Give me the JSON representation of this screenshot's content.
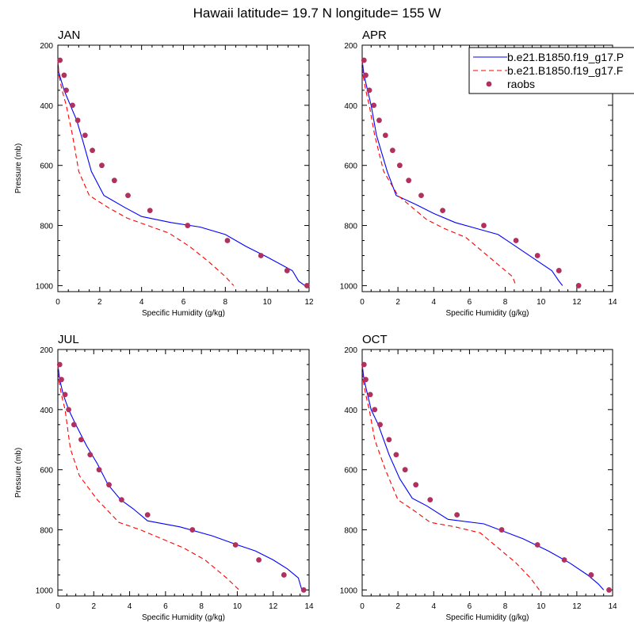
{
  "title": "Hawaii  latitude= 19.7 N longitude= 155 W",
  "colors": {
    "model_a": "#0000ff",
    "model_b": "#ff0000",
    "raobs": "#b03060"
  },
  "legend": {
    "placement": "top-right of APR panel",
    "entries": [
      "b.e21.B1850.f19_g17.P",
      "b.e21.B1850.f19_g17.F",
      "raobs"
    ]
  },
  "chart_data": [
    {
      "type": "line",
      "title": "JAN",
      "xlabel": "Specific Humidity (g/kg)",
      "ylabel": "Pressure (mb)",
      "xlim": [
        0,
        12
      ],
      "ylim": [
        200,
        1020
      ],
      "y_inverted": true,
      "xticks": [
        0,
        2,
        4,
        6,
        8,
        10,
        12
      ],
      "yticks": [
        200,
        400,
        600,
        800,
        1000
      ],
      "series": [
        {
          "name": "b.e21.B1850.f19_g17.P",
          "style": "solid",
          "points": [
            [
              0.0,
              250
            ],
            [
              0.04,
              290
            ],
            [
              0.3,
              350
            ],
            [
              0.6,
              400
            ],
            [
              0.9,
              450
            ],
            [
              1.2,
              520
            ],
            [
              1.6,
              620
            ],
            [
              2.2,
              700
            ],
            [
              3.2,
              740
            ],
            [
              4.0,
              770
            ],
            [
              5.4,
              790
            ],
            [
              6.8,
              805
            ],
            [
              8.0,
              830
            ],
            [
              9.0,
              870
            ],
            [
              10.0,
              905
            ],
            [
              11.2,
              950
            ],
            [
              11.5,
              985
            ],
            [
              11.8,
              1000
            ]
          ]
        },
        {
          "name": "b.e21.B1850.f19_g17.F",
          "style": "dashed",
          "points": [
            [
              0.0,
              250
            ],
            [
              0.05,
              300
            ],
            [
              0.2,
              350
            ],
            [
              0.4,
              400
            ],
            [
              0.7,
              500
            ],
            [
              1.0,
              620
            ],
            [
              1.5,
              700
            ],
            [
              2.4,
              740
            ],
            [
              3.3,
              775
            ],
            [
              4.3,
              800
            ],
            [
              5.3,
              825
            ],
            [
              6.3,
              870
            ],
            [
              7.2,
              920
            ],
            [
              8.0,
              970
            ],
            [
              8.4,
              1000
            ]
          ]
        },
        {
          "name": "raobs",
          "style": "markers",
          "points": [
            [
              0.1,
              250
            ],
            [
              0.3,
              300
            ],
            [
              0.4,
              350
            ],
            [
              0.7,
              400
            ],
            [
              0.95,
              450
            ],
            [
              1.3,
              500
            ],
            [
              1.65,
              550
            ],
            [
              2.1,
              600
            ],
            [
              2.7,
              650
            ],
            [
              3.35,
              700
            ],
            [
              4.4,
              750
            ],
            [
              6.2,
              800
            ],
            [
              8.1,
              850
            ],
            [
              9.7,
              900
            ],
            [
              10.95,
              950
            ],
            [
              11.9,
              1000
            ]
          ]
        }
      ]
    },
    {
      "type": "line",
      "title": "APR",
      "xlabel": "Specific Humidity (g/kg)",
      "ylabel": "",
      "xlim": [
        0,
        14
      ],
      "ylim": [
        200,
        1020
      ],
      "y_inverted": true,
      "xticks": [
        0,
        2,
        4,
        6,
        8,
        10,
        12,
        14
      ],
      "yticks": [
        200,
        400,
        600,
        800,
        1000
      ],
      "series": [
        {
          "name": "b.e21.B1850.f19_g17.P",
          "style": "solid",
          "points": [
            [
              0.0,
              250
            ],
            [
              0.1,
              300
            ],
            [
              0.3,
              350
            ],
            [
              0.5,
              400
            ],
            [
              0.8,
              500
            ],
            [
              1.4,
              620
            ],
            [
              1.9,
              700
            ],
            [
              3.0,
              730
            ],
            [
              4.0,
              760
            ],
            [
              5.2,
              790
            ],
            [
              6.4,
              810
            ],
            [
              7.6,
              830
            ],
            [
              8.6,
              870
            ],
            [
              9.6,
              910
            ],
            [
              10.6,
              950
            ],
            [
              11.0,
              985
            ],
            [
              11.2,
              1000
            ]
          ]
        },
        {
          "name": "b.e21.B1850.f19_g17.F",
          "style": "dashed",
          "points": [
            [
              0.0,
              250
            ],
            [
              0.05,
              300
            ],
            [
              0.2,
              350
            ],
            [
              0.4,
              400
            ],
            [
              0.7,
              500
            ],
            [
              1.2,
              620
            ],
            [
              2.0,
              700
            ],
            [
              2.8,
              740
            ],
            [
              3.6,
              780
            ],
            [
              4.6,
              810
            ],
            [
              5.8,
              840
            ],
            [
              6.8,
              890
            ],
            [
              7.8,
              940
            ],
            [
              8.4,
              970
            ],
            [
              8.6,
              1000
            ]
          ]
        },
        {
          "name": "raobs",
          "style": "markers",
          "points": [
            [
              0.1,
              250
            ],
            [
              0.2,
              300
            ],
            [
              0.4,
              350
            ],
            [
              0.65,
              400
            ],
            [
              0.95,
              450
            ],
            [
              1.3,
              500
            ],
            [
              1.7,
              550
            ],
            [
              2.1,
              600
            ],
            [
              2.6,
              650
            ],
            [
              3.3,
              700
            ],
            [
              4.5,
              750
            ],
            [
              6.8,
              800
            ],
            [
              8.6,
              850
            ],
            [
              9.8,
              900
            ],
            [
              11.0,
              950
            ],
            [
              12.1,
              1000
            ]
          ]
        }
      ]
    },
    {
      "type": "line",
      "title": "JUL",
      "xlabel": "Specific Humidity (g/kg)",
      "ylabel": "Pressure (mb)",
      "xlim": [
        0,
        14
      ],
      "ylim": [
        200,
        1020
      ],
      "y_inverted": true,
      "xticks": [
        0,
        2,
        4,
        6,
        8,
        10,
        12,
        14
      ],
      "yticks": [
        200,
        400,
        600,
        800,
        1000
      ],
      "series": [
        {
          "name": "b.e21.B1850.f19_g17.P",
          "style": "solid",
          "points": [
            [
              0.0,
              250
            ],
            [
              0.1,
              300
            ],
            [
              0.3,
              350
            ],
            [
              0.6,
              400
            ],
            [
              1.0,
              450
            ],
            [
              1.6,
              520
            ],
            [
              2.2,
              580
            ],
            [
              2.8,
              650
            ],
            [
              3.5,
              700
            ],
            [
              4.2,
              730
            ],
            [
              5.0,
              770
            ],
            [
              6.8,
              790
            ],
            [
              8.6,
              820
            ],
            [
              10.0,
              850
            ],
            [
              11.0,
              870
            ],
            [
              12.0,
              900
            ],
            [
              12.8,
              930
            ],
            [
              13.4,
              960
            ],
            [
              13.6,
              1000
            ]
          ]
        },
        {
          "name": "b.e21.B1850.f19_g17.F",
          "style": "dashed",
          "points": [
            [
              0.0,
              250
            ],
            [
              0.05,
              300
            ],
            [
              0.2,
              350
            ],
            [
              0.4,
              400
            ],
            [
              0.7,
              530
            ],
            [
              1.2,
              620
            ],
            [
              2.2,
              700
            ],
            [
              3.4,
              775
            ],
            [
              4.6,
              800
            ],
            [
              5.8,
              830
            ],
            [
              7.0,
              860
            ],
            [
              8.2,
              900
            ],
            [
              9.4,
              960
            ],
            [
              10.1,
              1000
            ]
          ]
        },
        {
          "name": "raobs",
          "style": "markers",
          "points": [
            [
              0.1,
              250
            ],
            [
              0.2,
              300
            ],
            [
              0.4,
              350
            ],
            [
              0.6,
              400
            ],
            [
              0.9,
              450
            ],
            [
              1.3,
              500
            ],
            [
              1.8,
              550
            ],
            [
              2.3,
              600
            ],
            [
              2.85,
              650
            ],
            [
              3.55,
              700
            ],
            [
              5.0,
              750
            ],
            [
              7.5,
              800
            ],
            [
              9.9,
              850
            ],
            [
              11.2,
              900
            ],
            [
              12.6,
              950
            ],
            [
              13.7,
              1000
            ]
          ]
        }
      ]
    },
    {
      "type": "line",
      "title": "OCT",
      "xlabel": "Specific Humidity (g/kg)",
      "ylabel": "",
      "xlim": [
        0,
        14
      ],
      "ylim": [
        200,
        1020
      ],
      "y_inverted": true,
      "xticks": [
        0,
        2,
        4,
        6,
        8,
        10,
        12,
        14
      ],
      "yticks": [
        200,
        400,
        600,
        800,
        1000
      ],
      "series": [
        {
          "name": "b.e21.B1850.f19_g17.P",
          "style": "solid",
          "points": [
            [
              0.0,
              250
            ],
            [
              0.1,
              300
            ],
            [
              0.3,
              350
            ],
            [
              0.5,
              400
            ],
            [
              0.9,
              450
            ],
            [
              1.5,
              550
            ],
            [
              2.1,
              630
            ],
            [
              2.8,
              695
            ],
            [
              3.6,
              720
            ],
            [
              4.8,
              765
            ],
            [
              6.8,
              780
            ],
            [
              9.0,
              830
            ],
            [
              10.4,
              870
            ],
            [
              11.6,
              910
            ],
            [
              12.6,
              950
            ],
            [
              13.2,
              980
            ],
            [
              13.5,
              1000
            ]
          ]
        },
        {
          "name": "b.e21.B1850.f19_g17.F",
          "style": "dashed",
          "points": [
            [
              0.0,
              250
            ],
            [
              0.05,
              300
            ],
            [
              0.2,
              350
            ],
            [
              0.4,
              400
            ],
            [
              0.7,
              500
            ],
            [
              1.3,
              600
            ],
            [
              2.0,
              700
            ],
            [
              3.0,
              740
            ],
            [
              3.8,
              775
            ],
            [
              5.2,
              790
            ],
            [
              6.6,
              810
            ],
            [
              7.6,
              860
            ],
            [
              8.6,
              910
            ],
            [
              9.4,
              960
            ],
            [
              9.9,
              1000
            ]
          ]
        },
        {
          "name": "raobs",
          "style": "markers",
          "points": [
            [
              0.1,
              250
            ],
            [
              0.2,
              300
            ],
            [
              0.45,
              350
            ],
            [
              0.7,
              400
            ],
            [
              1.0,
              450
            ],
            [
              1.5,
              500
            ],
            [
              1.9,
              550
            ],
            [
              2.4,
              600
            ],
            [
              3.0,
              650
            ],
            [
              3.8,
              700
            ],
            [
              5.3,
              750
            ],
            [
              7.8,
              800
            ],
            [
              9.8,
              850
            ],
            [
              11.3,
              900
            ],
            [
              12.8,
              950
            ],
            [
              13.8,
              1000
            ]
          ]
        }
      ]
    }
  ]
}
